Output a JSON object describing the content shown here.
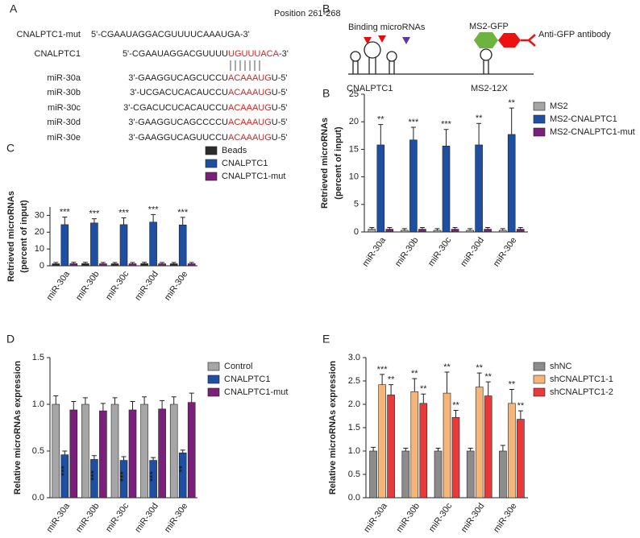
{
  "panel_a": {
    "label": "A",
    "position": "Position 261-268",
    "highlight_color": "#e0201b",
    "rows": [
      {
        "name": "CNALPTC1-mut",
        "seq": [
          "5'-CGAAUAGGACGUUUUCAAAUGA-3'"
        ]
      },
      {
        "name": "CNALPTC1",
        "seq": [
          "5'-CGAAUAGGACGUUUU",
          "UGUUUACA",
          "-3'"
        ]
      },
      {
        "name": "miR-30a",
        "seq": [
          "3'-GAAGGUCAGCUCCU",
          "ACAAAUG",
          "U-5'"
        ]
      },
      {
        "name": "miR-30b",
        "seq": [
          "3'-UCGACUCACAUCCU",
          "ACAAAUG",
          "U-5'"
        ]
      },
      {
        "name": "miR-30c",
        "seq": [
          "3'-CGACUCUCACAUCCU",
          "ACAAAUG",
          "U-5'"
        ]
      },
      {
        "name": "miR-30d",
        "seq": [
          "3'-GAAGGUCAGCCCCU",
          "ACAAAUG",
          "U-5'"
        ]
      },
      {
        "name": "miR-30e",
        "seq": [
          "3'-GAAGGUCAGUUCCU",
          "ACAAAUG",
          "U-5'"
        ]
      }
    ]
  },
  "panel_b": {
    "label": "B",
    "binding": "Binding microRNAs",
    "gfp": "MS2-GFP",
    "antibody": "Anti-GFP antibody",
    "rna": "CNALPTC1",
    "ms2": "MS2-12X"
  },
  "chart_data": [
    {
      "type": "bar",
      "panel_label": "C",
      "y_label": [
        "Retrieved microRNAs",
        "(percent of input)"
      ],
      "categories": [
        "miR-30a",
        "miR-30b",
        "miR-30c",
        "miR-30d",
        "miR-30e"
      ],
      "ylim": [
        0,
        35
      ],
      "yticks": [
        0,
        10,
        20,
        30
      ],
      "series": [
        {
          "name": "Beads",
          "color": "#2b2b2b",
          "values": [
            1.2,
            1.3,
            1.2,
            1.3,
            1.2
          ],
          "errors": [
            0.8,
            0.8,
            0.8,
            0.8,
            0.8
          ]
        },
        {
          "name": "CNALPTC1",
          "color": "#1f4fa0",
          "values": [
            24.5,
            25.5,
            24.5,
            26,
            24.3
          ],
          "errors": [
            4.5,
            2.5,
            4,
            4.5,
            4.5
          ],
          "annotations": [
            "***",
            "***",
            "***",
            "***",
            "***"
          ]
        },
        {
          "name": "CNALPTC1-mut",
          "color": "#7a1f7a",
          "values": [
            1.3,
            1.2,
            1.2,
            1.2,
            1.2
          ],
          "errors": [
            0.8,
            0.8,
            0.8,
            0.8,
            0.8
          ]
        }
      ]
    },
    {
      "type": "bar",
      "panel_label": "B",
      "y_label": [
        "Retrieved microRNAs",
        "(percent of input)"
      ],
      "categories": [
        "miR-30a",
        "miR-30b",
        "miR-30c",
        "miR-30d",
        "miR-30e"
      ],
      "ylim": [
        0,
        25
      ],
      "yticks": [
        0,
        5,
        10,
        15,
        20,
        25
      ],
      "series": [
        {
          "name": "MS2",
          "color": "#a6a6a6",
          "values": [
            0.5,
            0.3,
            0.3,
            0.3,
            0.3
          ],
          "errors": [
            0.3,
            0.3,
            0.3,
            0.3,
            0.3
          ]
        },
        {
          "name": "MS2-CNALPTC1",
          "color": "#1f4fa0",
          "values": [
            15.8,
            16.7,
            15.6,
            15.8,
            17.7
          ],
          "errors": [
            3.7,
            2.3,
            3,
            3.9,
            4.8
          ],
          "annotations": [
            "**",
            "***",
            "***",
            "**",
            "**"
          ]
        },
        {
          "name": "MS2-CNALPTC1-mut",
          "color": "#7a1f7a",
          "values": [
            0.5,
            0.5,
            0.5,
            0.5,
            0.5
          ],
          "errors": [
            0.3,
            0.3,
            0.3,
            0.3,
            0.3
          ]
        }
      ]
    },
    {
      "type": "bar",
      "panel_label": "D",
      "y_label": [
        "Relative microRNAs expression"
      ],
      "categories": [
        "miR-30a",
        "miR-30b",
        "miR-30c",
        "miR-30d",
        "miR-30e"
      ],
      "ylim": [
        0,
        1.5
      ],
      "yticks": [
        {
          "value": 0,
          "label": "0.0"
        },
        {
          "value": 0.5,
          "label": "0.5"
        },
        {
          "value": 1,
          "label": "1.0"
        },
        {
          "value": 1.5,
          "label": "1.5"
        }
      ],
      "series": [
        {
          "name": "Control",
          "color": "#a6a6a6",
          "values": [
            1,
            1,
            1,
            1,
            1
          ],
          "errors": [
            0.09,
            0.07,
            0.07,
            0.08,
            0.08
          ]
        },
        {
          "name": "CNALPTC1",
          "color": "#1f4fa0",
          "values": [
            0.46,
            0.41,
            0.4,
            0.4,
            0.48
          ],
          "errors": [
            0.04,
            0.04,
            0.04,
            0.03,
            0.03
          ],
          "annotations": [
            "***",
            "***",
            "***",
            "***",
            "**"
          ]
        },
        {
          "name": "CNALPTC1-mut",
          "color": "#7a1f7a",
          "values": [
            0.94,
            0.93,
            0.94,
            0.95,
            1.02
          ],
          "errors": [
            0.09,
            0.08,
            0.09,
            0.09,
            0.1
          ]
        }
      ]
    },
    {
      "type": "bar",
      "panel_label": "E",
      "y_label": [
        "Relative microRNAs expression"
      ],
      "categories": [
        "miR-30a",
        "miR-30b",
        "miR-30c",
        "miR-30d",
        "miR-30e"
      ],
      "ylim": [
        0,
        3
      ],
      "yticks": [
        {
          "value": 0,
          "label": "0.0"
        },
        {
          "value": 0.5,
          "label": "0.5"
        },
        {
          "value": 1,
          "label": "1.0"
        },
        {
          "value": 1.5,
          "label": "1.5"
        },
        {
          "value": 2,
          "label": "2.0"
        },
        {
          "value": 2.5,
          "label": "2.5"
        },
        {
          "value": 3,
          "label": "3.0"
        }
      ],
      "series": [
        {
          "name": "shNC",
          "color": "#8c8c8c",
          "values": [
            1,
            1,
            1,
            1,
            1
          ],
          "errors": [
            0.08,
            0.06,
            0.06,
            0.06,
            0.12
          ]
        },
        {
          "name": "shCNALPTC1-1",
          "color": "#f4b57a",
          "values": [
            2.42,
            2.27,
            2.24,
            2.37,
            2.02
          ],
          "errors": [
            0.22,
            0.28,
            0.45,
            0.3,
            0.3
          ],
          "annotations": [
            "***",
            "**",
            "**",
            "**",
            "**"
          ]
        },
        {
          "name": "shCNALPTC1-2",
          "color": "#e83a3a",
          "values": [
            2.2,
            2.02,
            1.72,
            2.18,
            1.68
          ],
          "errors": [
            0.22,
            0.2,
            0.15,
            0.3,
            0.18
          ],
          "annotations": [
            "**",
            "**",
            "**",
            "**",
            "**"
          ]
        }
      ]
    }
  ]
}
